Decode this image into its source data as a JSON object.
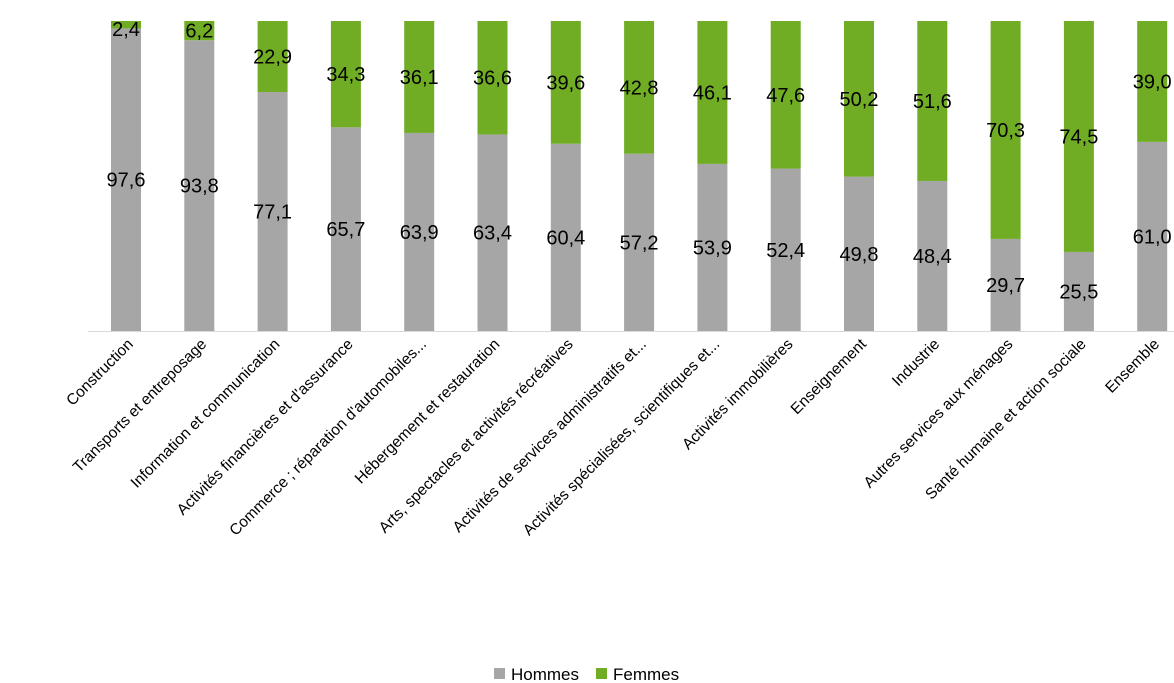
{
  "chart_data": {
    "type": "bar",
    "stacked": true,
    "percent_stacked": true,
    "categories": [
      "Construction",
      "Transports et entreposage",
      "Information et communication",
      "Activités financières et d'assurance",
      "Commerce ; réparation d'automobiles...",
      "Hébergement et restauration",
      "Arts, spectacles et activités récréatives",
      "Activités de services administratifs et...",
      "Activités spécialisées, scientifiques et...",
      "Activités immobilières",
      "Enseignement",
      "Industrie",
      "Autres services aux ménages",
      "Santé humaine et action sociale",
      "Ensemble"
    ],
    "series": [
      {
        "name": "Hommes",
        "color": "#a6a6a6",
        "values": [
          97.6,
          93.8,
          77.1,
          65.7,
          63.9,
          63.4,
          60.4,
          57.2,
          53.9,
          52.4,
          49.8,
          48.4,
          29.7,
          25.5,
          61.0
        ],
        "labels": [
          "97,6",
          "93,8",
          "77,1",
          "65,7",
          "63,9",
          "63,4",
          "60,4",
          "57,2",
          "53,9",
          "52,4",
          "49,8",
          "48,4",
          "29,7",
          "25,5",
          "61,0"
        ]
      },
      {
        "name": "Femmes",
        "color": "#70ad25",
        "values": [
          2.4,
          6.2,
          22.9,
          34.3,
          36.1,
          36.6,
          39.6,
          42.8,
          46.1,
          47.6,
          50.2,
          51.6,
          70.3,
          74.5,
          39.0
        ],
        "labels": [
          "2,4",
          "6,2",
          "22,9",
          "34,3",
          "36,1",
          "36,6",
          "39,6",
          "42,8",
          "46,1",
          "47,6",
          "50,2",
          "51,6",
          "70,3",
          "74,5",
          "39,0"
        ]
      }
    ],
    "ylim": [
      0,
      100
    ],
    "grid": false,
    "legend": "bottom-center",
    "axis_color": "#d9d9d9"
  }
}
